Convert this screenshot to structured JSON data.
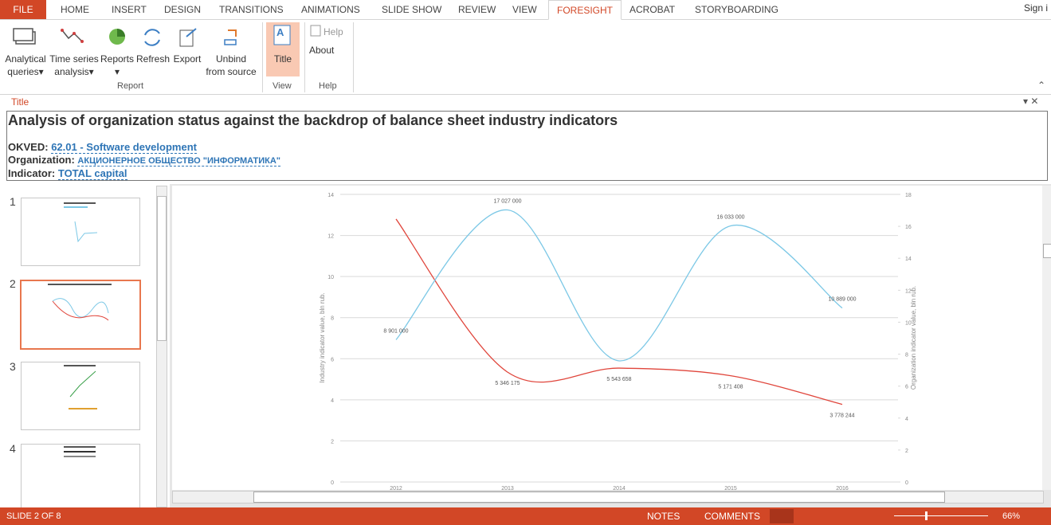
{
  "ribbon": {
    "tabs": [
      "FILE",
      "HOME",
      "INSERT",
      "DESIGN",
      "TRANSITIONS",
      "ANIMATIONS",
      "SLIDE SHOW",
      "REVIEW",
      "VIEW",
      "FORESIGHT",
      "ACROBAT",
      "STORYBOARDING"
    ],
    "active_tab": 9,
    "account": "Sign i",
    "groups": [
      {
        "name": "Report",
        "buttons": [
          {
            "lines": [
              "Analytical",
              "queries"
            ]
          },
          {
            "lines": [
              "Time series",
              "analysis"
            ]
          },
          {
            "lines": [
              "Reports"
            ]
          },
          {
            "lines": [
              "Refresh"
            ]
          },
          {
            "lines": [
              "Export"
            ]
          },
          {
            "lines": [
              "Unbind",
              "from source"
            ]
          }
        ]
      },
      {
        "name": "View",
        "buttons": [
          {
            "lines": [
              "Title"
            ]
          }
        ]
      },
      {
        "name": "Help",
        "buttons": [
          {
            "lines": [
              "Help"
            ]
          },
          {
            "lines": [
              "About"
            ]
          }
        ]
      }
    ]
  },
  "title_pane": {
    "label": "Title",
    "heading": "Analysis of organization status against the backdrop of balance sheet industry indicators",
    "fields": [
      {
        "name": "OKVED:",
        "value": "62.01 - Software development"
      },
      {
        "name": "Organization:",
        "value": "АКЦИОНЕРНОЕ ОБЩЕСТВО \"ИНФОРМАТИКА\""
      },
      {
        "name": "Indicator:",
        "value": "TOTAL capital"
      }
    ]
  },
  "slides": {
    "numbers": [
      1,
      2,
      3,
      4
    ],
    "selected": 1
  },
  "status_bar": {
    "slide": "SLIDE 2 OF 8",
    "notes": "NOTES",
    "comments": "COMMENTS",
    "zoom": "66%"
  },
  "chart_data": {
    "type": "line",
    "categories": [
      "2012",
      "2013",
      "2014",
      "2015",
      "2016"
    ],
    "y_label": "Industry indicator value, bln rub.",
    "y2_label": "Organization indicator value, bln rub.",
    "ylim": [
      0,
      14
    ],
    "yticks": [
      0,
      2,
      4,
      6,
      8,
      10,
      12,
      14
    ],
    "y2lim": [
      0,
      18
    ],
    "y2ticks": [
      0,
      2,
      4,
      6,
      8,
      10,
      12,
      14,
      16,
      18
    ],
    "grid": true,
    "series": [
      {
        "name": "Industry",
        "color": "#e0463c",
        "axis": "y",
        "values": [
          12.8,
          5.346175,
          5.543658,
          5.171408,
          3.778244
        ],
        "value_labels": [
          null,
          "5 346 175",
          "5 543 658",
          "5 171 408",
          "3 778 244"
        ]
      },
      {
        "name": "Organization",
        "color": "#7cc8e6",
        "axis": "y2",
        "values": [
          8.901,
          17.027,
          7.58,
          16.033,
          10.889
        ],
        "value_labels": [
          "8 901 000",
          "17 027 000",
          null,
          "16 033 000",
          "10 889 000"
        ]
      }
    ]
  }
}
